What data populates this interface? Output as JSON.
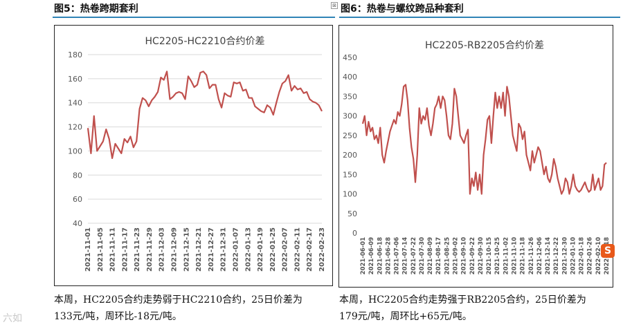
{
  "left": {
    "fig_title": "图5：热卷跨期套利",
    "caption_line1": "本周，HC2205合约走势弱于HC2210合约，25日价差为",
    "caption_line2": "133元/吨，周环比-18元/吨。"
  },
  "right": {
    "fig_title": "图6：热卷与螺纹跨品种套利",
    "caption_line1": "本周，HC2205合约走势强于RB2205合约，25日价差为",
    "caption_line2": "179元/吨，周环比+65元/吨。"
  },
  "watermark": "六如",
  "badge_letter": "S",
  "colors": {
    "line": "#c0504d",
    "grid": "#d9d9d9",
    "rule": "#2f84b6"
  },
  "chart_data": [
    {
      "type": "line",
      "title": "HC2205-HC2210合约价差",
      "xlabel": "",
      "ylabel": "",
      "ylim": [
        40,
        180
      ],
      "yticks": [
        40,
        60,
        80,
        100,
        120,
        140,
        160,
        180
      ],
      "grid": true,
      "x_tick_labels": [
        "2021-11-01",
        "2021-11-05",
        "2021-11-11",
        "2021-11-17",
        "2021-11-23",
        "2021-11-29",
        "2021-12-03",
        "2021-12-09",
        "2021-12-15",
        "2021-12-21",
        "2021-12-27",
        "2021-12-31",
        "2022-01-07",
        "2022-01-13",
        "2022-01-19",
        "2022-01-25",
        "2022-02-07",
        "2022-02-11",
        "2022-02-17",
        "2022-02-23"
      ],
      "series": [
        {
          "values": [
            119,
            98,
            129,
            100,
            104,
            108,
            118,
            110,
            94,
            106,
            102,
            98,
            110,
            107,
            112,
            103,
            108,
            135,
            144,
            142,
            137,
            142,
            145,
            149,
            161,
            159,
            166,
            143,
            145,
            148,
            149,
            148,
            143,
            162,
            158,
            153,
            155,
            165,
            166,
            163,
            152,
            155,
            155,
            143,
            136,
            148,
            146,
            145,
            157,
            156,
            157,
            150,
            151,
            144,
            144,
            137,
            135,
            133,
            132,
            138,
            136,
            130,
            140,
            149,
            156,
            158,
            163,
            150,
            154,
            151,
            152,
            148,
            149,
            143,
            141,
            140,
            138,
            133
          ]
        }
      ]
    },
    {
      "type": "line",
      "title": "HC2205-RB2205合约价差",
      "xlabel": "",
      "ylabel": "",
      "ylim": [
        0,
        450
      ],
      "yticks": [
        0,
        50,
        100,
        150,
        200,
        250,
        300,
        350,
        400,
        450
      ],
      "grid": false,
      "x_tick_labels": [
        "2021-06-01",
        "2021-06-09",
        "2021-06-18",
        "2021-06-28",
        "2021-07-06",
        "2021-07-14",
        "2021-07-22",
        "2021-07-30",
        "2021-08-09",
        "2021-08-17",
        "2021-08-25",
        "2021-09-02",
        "2021-09-10",
        "2021-09-22",
        "2021-09-30",
        "2021-10-15",
        "2021-10-25",
        "2021-11-02",
        "2021-11-10",
        "2021-11-18",
        "2021-11-26",
        "2021-12-06",
        "2021-12-14",
        "2021-12-22",
        "2021-12-30",
        "2022-01-10",
        "2022-01-18",
        "2022-01-26",
        "2022-02-10",
        "2022-02-18"
      ],
      "series": [
        {
          "values": [
            280,
            300,
            250,
            285,
            260,
            270,
            240,
            250,
            230,
            270,
            200,
            180,
            210,
            235,
            260,
            275,
            290,
            280,
            310,
            300,
            330,
            375,
            380,
            340,
            270,
            220,
            190,
            130,
            200,
            320,
            280,
            300,
            290,
            320,
            275,
            250,
            280,
            320,
            330,
            350,
            320,
            350,
            340,
            300,
            250,
            240,
            280,
            370,
            350,
            300,
            250,
            240,
            230,
            250,
            265,
            100,
            140,
            120,
            155,
            110,
            150,
            100,
            200,
            240,
            290,
            300,
            230,
            300,
            360,
            320,
            350,
            320,
            360,
            300,
            375,
            350,
            300,
            250,
            230,
            210,
            280,
            270,
            240,
            260,
            200,
            180,
            160,
            210,
            180,
            200,
            220,
            210,
            180,
            150,
            170,
            140,
            130,
            150,
            190,
            170,
            140,
            120,
            100,
            110,
            140,
            130,
            100,
            120,
            150,
            120,
            110,
            105,
            110,
            120,
            130,
            115,
            105,
            110,
            150,
            110,
            125,
            140,
            110,
            120,
            175,
            180
          ]
        }
      ]
    }
  ]
}
